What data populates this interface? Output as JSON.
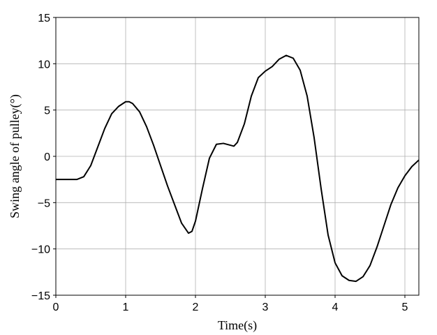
{
  "chart_data": {
    "type": "line",
    "xlabel": "Time(s)",
    "ylabel": "Swing angle of pulley(°)",
    "x": [
      0,
      0.3,
      0.4,
      0.5,
      0.6,
      0.7,
      0.8,
      0.9,
      1.0,
      1.05,
      1.1,
      1.2,
      1.3,
      1.4,
      1.5,
      1.6,
      1.7,
      1.8,
      1.9,
      1.95,
      2.0,
      2.1,
      2.2,
      2.3,
      2.4,
      2.5,
      2.55,
      2.6,
      2.7,
      2.8,
      2.9,
      3.0,
      3.1,
      3.2,
      3.3,
      3.4,
      3.5,
      3.6,
      3.7,
      3.8,
      3.9,
      4.0,
      4.1,
      4.2,
      4.3,
      4.4,
      4.5,
      4.6,
      4.7,
      4.8,
      4.9,
      5.0,
      5.1,
      5.2
    ],
    "series": [
      {
        "color": "#000000",
        "values": [
          -2.5,
          -2.5,
          -2.2,
          -1,
          1,
          3,
          4.6,
          5.4,
          5.9,
          5.9,
          5.7,
          4.8,
          3.2,
          1.2,
          -1,
          -3.2,
          -5.2,
          -7.2,
          -8.3,
          -8.1,
          -7,
          -3.5,
          -0.2,
          1.3,
          1.4,
          1.2,
          1.1,
          1.5,
          3.5,
          6.5,
          8.5,
          9.2,
          9.7,
          10.5,
          10.9,
          10.6,
          9.3,
          6.5,
          2,
          -3.5,
          -8.5,
          -11.5,
          -12.9,
          -13.4,
          -13.5,
          -13,
          -11.8,
          -9.8,
          -7.5,
          -5.2,
          -3.4,
          -2.1,
          -1.1,
          -0.4
        ]
      }
    ],
    "xlim": [
      0,
      5.2
    ],
    "xticks": [
      0,
      1,
      2,
      3,
      4,
      5
    ],
    "ylim": [
      -15,
      15
    ],
    "yticks": [
      {
        "value": -15,
        "label": "−15"
      },
      {
        "value": -10,
        "label": "−10"
      },
      {
        "value": -5,
        "label": "−5"
      },
      0,
      5,
      10,
      15
    ],
    "grid": true
  }
}
